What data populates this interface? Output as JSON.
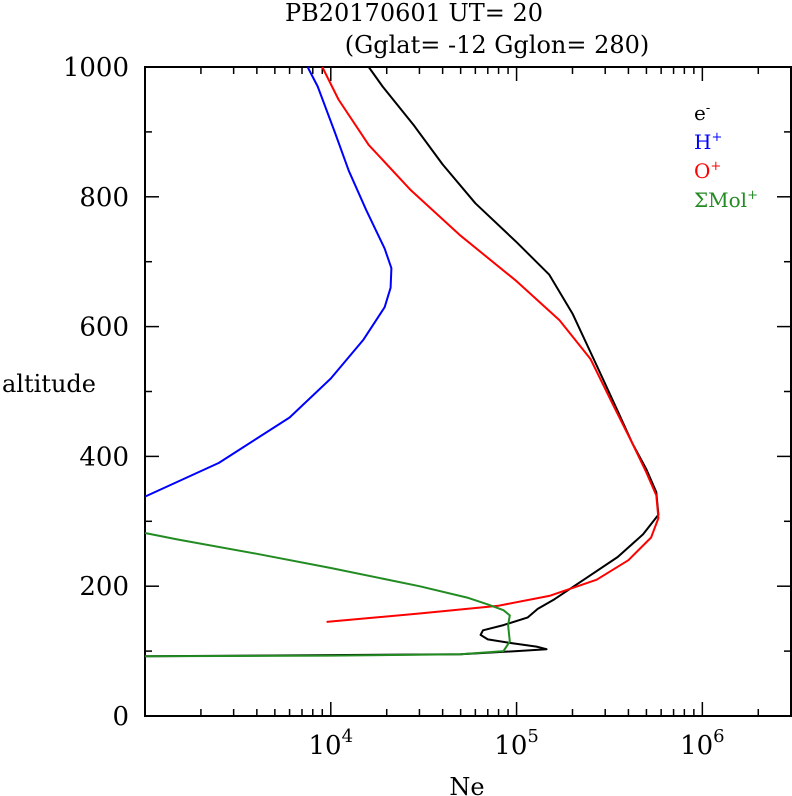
{
  "chart_data": {
    "type": "line",
    "title": "PB20170601   UT=  20",
    "subtitle": "(Gglat= -12   Gglon=  280)",
    "xlabel": "Ne",
    "ylabel": "altitude",
    "x_scale": "log",
    "xlim": [
      1000,
      3000000
    ],
    "ylim": [
      0,
      1000
    ],
    "y_ticks": [
      0,
      200,
      400,
      600,
      800,
      1000
    ],
    "x_ticks": [
      {
        "value": 10000,
        "base": "10",
        "exp": "4"
      },
      {
        "value": 100000,
        "base": "10",
        "exp": "5"
      },
      {
        "value": 1000000,
        "base": "10",
        "exp": "6"
      }
    ],
    "grid": false,
    "legend_position": "top-right",
    "series": [
      {
        "name": "e",
        "name_sup": "-",
        "color": "#000000",
        "points": [
          [
            1000,
            92
          ],
          [
            50000,
            95
          ],
          [
            100000,
            100
          ],
          [
            145000,
            103
          ],
          [
            128000,
            107
          ],
          [
            95000,
            112
          ],
          [
            70000,
            118
          ],
          [
            64000,
            125
          ],
          [
            66000,
            132
          ],
          [
            85000,
            140
          ],
          [
            115000,
            152
          ],
          [
            130000,
            165
          ],
          [
            160000,
            180
          ],
          [
            230000,
            210
          ],
          [
            350000,
            245
          ],
          [
            480000,
            280
          ],
          [
            580000,
            310
          ],
          [
            565000,
            345
          ],
          [
            500000,
            380
          ],
          [
            420000,
            420
          ],
          [
            350000,
            470
          ],
          [
            270000,
            540
          ],
          [
            200000,
            620
          ],
          [
            150000,
            680
          ],
          [
            100000,
            730
          ],
          [
            60000,
            790
          ],
          [
            40000,
            850
          ],
          [
            28000,
            910
          ],
          [
            19000,
            970
          ],
          [
            16000,
            1000
          ]
        ]
      },
      {
        "name": "H",
        "name_sup": "+",
        "color": "#0000ff",
        "points": [
          [
            1000,
            338
          ],
          [
            2500,
            390
          ],
          [
            6000,
            460
          ],
          [
            10000,
            520
          ],
          [
            15000,
            580
          ],
          [
            19500,
            630
          ],
          [
            21000,
            660
          ],
          [
            21200,
            690
          ],
          [
            19500,
            720
          ],
          [
            15500,
            780
          ],
          [
            12500,
            840
          ],
          [
            10500,
            900
          ],
          [
            8500,
            970
          ],
          [
            7500,
            1000
          ]
        ]
      },
      {
        "name": "O",
        "name_sup": "+",
        "color": "#ff0000",
        "points": [
          [
            9500,
            145
          ],
          [
            30000,
            158
          ],
          [
            80000,
            170
          ],
          [
            150000,
            185
          ],
          [
            270000,
            210
          ],
          [
            400000,
            240
          ],
          [
            530000,
            275
          ],
          [
            580000,
            305
          ],
          [
            565000,
            340
          ],
          [
            500000,
            375
          ],
          [
            420000,
            420
          ],
          [
            330000,
            480
          ],
          [
            250000,
            550
          ],
          [
            170000,
            610
          ],
          [
            100000,
            670
          ],
          [
            50000,
            740
          ],
          [
            27000,
            810
          ],
          [
            16000,
            880
          ],
          [
            11000,
            950
          ],
          [
            9000,
            1000
          ]
        ]
      },
      {
        "name": "ΣMol",
        "name_sup": "+",
        "color": "#228b22",
        "points": [
          [
            1000,
            92
          ],
          [
            10000,
            93
          ],
          [
            50000,
            95
          ],
          [
            85000,
            100
          ],
          [
            92000,
            115
          ],
          [
            90000,
            140
          ],
          [
            92000,
            155
          ],
          [
            85000,
            163
          ],
          [
            70000,
            172
          ],
          [
            55000,
            182
          ],
          [
            30000,
            200
          ],
          [
            10000,
            228
          ],
          [
            4000,
            250
          ],
          [
            1500,
            272
          ],
          [
            1000,
            282
          ]
        ]
      }
    ]
  }
}
